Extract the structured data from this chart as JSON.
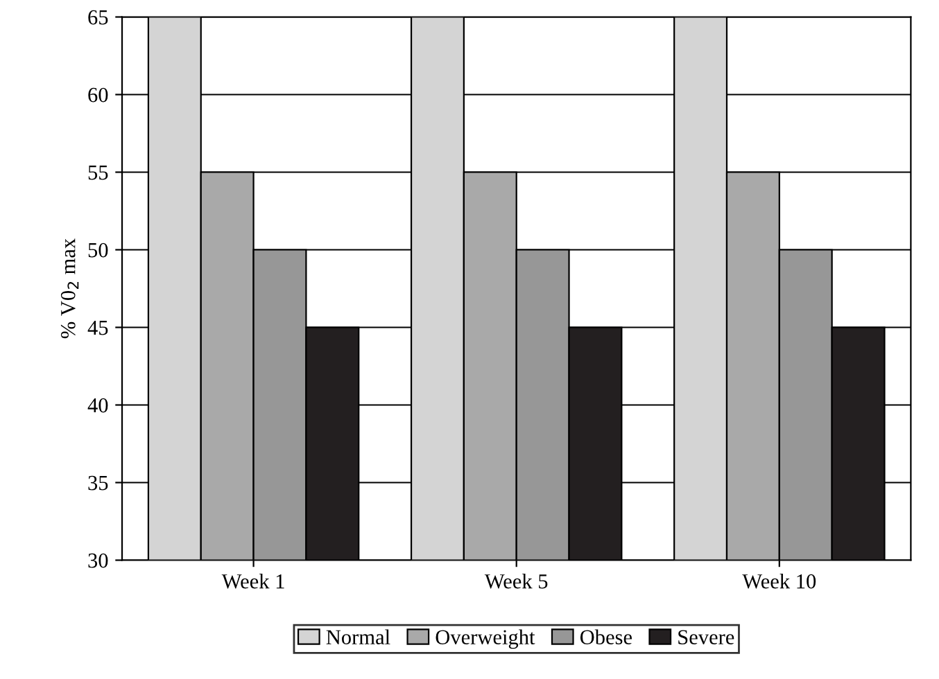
{
  "chart_data": {
    "type": "bar",
    "ylabel": "% V0$_{2}$ max",
    "categories": [
      "Week 1",
      "Week 5",
      "Week 10"
    ],
    "series": [
      {
        "name": "Normal",
        "color": "#d4d4d4",
        "values": [
          65,
          65,
          65
        ]
      },
      {
        "name": "Overweight",
        "color": "#a9a9a9",
        "values": [
          55,
          55,
          55
        ]
      },
      {
        "name": "Obese",
        "color": "#979797",
        "values": [
          50,
          50,
          50
        ]
      },
      {
        "name": "Severe",
        "color": "#231f20",
        "values": [
          45,
          45,
          45
        ]
      }
    ],
    "ylim": [
      30,
      65
    ],
    "yticks": [
      30,
      35,
      40,
      45,
      50,
      55,
      60,
      65
    ],
    "grid": "y",
    "legend": "bottom"
  }
}
